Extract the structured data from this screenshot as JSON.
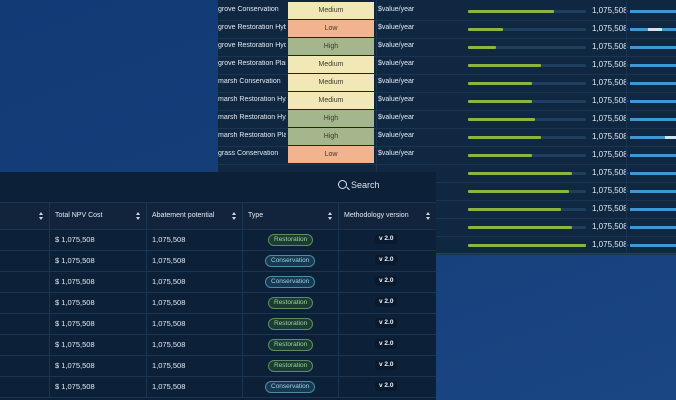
{
  "colors": {
    "background_blue": "#163f7a",
    "panel": "#0c2038",
    "green_bar": "#8db43e",
    "blue_bar": "#3f97d4",
    "medium": "#f2e7b6",
    "low": "#f1b48f",
    "high": "#a5b68c"
  },
  "projects": [
    {
      "name": "grove Conservation",
      "rating": "Medium",
      "unit": "$value/year"
    },
    {
      "name": "grove Restoration Hyb...",
      "rating": "Low",
      "unit": "$value/year"
    },
    {
      "name": "grove Restoration Hyd...",
      "rating": "High",
      "unit": "$value/year"
    },
    {
      "name": "grove Restoration Plan...",
      "rating": "Medium",
      "unit": "$value/year"
    },
    {
      "name": "marsh Conservation",
      "rating": "Medium",
      "unit": "$value/year"
    },
    {
      "name": "marsh Restoration Hy...",
      "rating": "Medium",
      "unit": "$value/year"
    },
    {
      "name": "marsh Restoration Hy...",
      "rating": "High",
      "unit": "$value/year"
    },
    {
      "name": "marsh Restoration Pla...",
      "rating": "High",
      "unit": "$value/year"
    },
    {
      "name": "grass Conservation",
      "rating": "Low",
      "unit": "$value/year"
    }
  ],
  "rank_rows": [
    {
      "value": "1,075,508",
      "green_fraction": 0.73,
      "blue_fraction": 1.0
    },
    {
      "value": "1,075,508",
      "green_fraction": 0.3,
      "blue_fraction": 0.4
    },
    {
      "value": "1,075,508",
      "green_fraction": 0.24,
      "blue_fraction": 1.0
    },
    {
      "value": "1,075,508",
      "green_fraction": 0.62,
      "blue_fraction": 1.0
    },
    {
      "value": "1,075,508",
      "green_fraction": 0.54,
      "blue_fraction": 1.0
    },
    {
      "value": "1,075,508",
      "green_fraction": 0.54,
      "blue_fraction": 1.0
    },
    {
      "value": "1,075,508",
      "green_fraction": 0.57,
      "blue_fraction": 1.0
    },
    {
      "value": "1,075,508",
      "green_fraction": 0.62,
      "blue_fraction": 0.75
    },
    {
      "value": "1,075,508",
      "green_fraction": 0.54,
      "blue_fraction": 1.0
    },
    {
      "value": "1,075,508",
      "green_fraction": 0.88,
      "blue_fraction": 1.0
    },
    {
      "value": "1,075,508",
      "green_fraction": 0.86,
      "blue_fraction": 1.0
    },
    {
      "value": "1,075,508",
      "green_fraction": 0.79,
      "blue_fraction": 1.0
    },
    {
      "value": "1,075,508",
      "green_fraction": 0.88,
      "blue_fraction": 1.0
    },
    {
      "value": "1,075,508",
      "green_fraction": 1.0,
      "blue_fraction": 1.0
    }
  ],
  "search": {
    "label": "Search"
  },
  "table": {
    "headers": [
      "",
      "Total NPV Cost",
      "Abatement potential",
      "Type",
      "Methodology version"
    ],
    "rows": [
      {
        "cost": "$ 1,075,508",
        "abatement": "1,075,508",
        "type": "Restoration",
        "version": "v 2.0"
      },
      {
        "cost": "$ 1,075,508",
        "abatement": "1,075,508",
        "type": "Conservation",
        "version": "v 2.0"
      },
      {
        "cost": "$ 1,075,508",
        "abatement": "1,075,508",
        "type": "Conservation",
        "version": "v 2.0"
      },
      {
        "cost": "$ 1,075,508",
        "abatement": "1,075,508",
        "type": "Restoration",
        "version": "v 2.0"
      },
      {
        "cost": "$ 1,075,508",
        "abatement": "1,075,508",
        "type": "Restoration",
        "version": "v 2.0"
      },
      {
        "cost": "$ 1,075,508",
        "abatement": "1,075,508",
        "type": "Restoration",
        "version": "v 2.0"
      },
      {
        "cost": "$ 1,075,508",
        "abatement": "1,075,508",
        "type": "Restoration",
        "version": "v 2.0"
      },
      {
        "cost": "$ 1,075,508",
        "abatement": "1,075,508",
        "type": "Conservation",
        "version": "v 2.0"
      }
    ]
  }
}
